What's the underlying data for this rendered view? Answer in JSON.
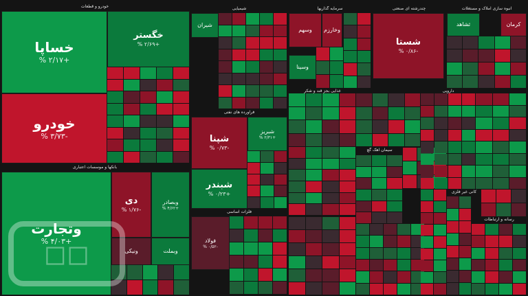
{
  "colors": {
    "up_strong": "#0d9a4a",
    "up": "#0b7a3c",
    "up_soft": "#1f5f38",
    "down_strong": "#c0152c",
    "down": "#8e1428",
    "down_soft": "#5a1c2a",
    "neutral": "#3a2a30"
  },
  "sectors": [
    {
      "id": "auto",
      "title": "خودرو و قطعات"
    },
    {
      "id": "bank",
      "title": "بانکها و موسسات اعتباری"
    },
    {
      "id": "refinery",
      "title": "فراورده های نفتی"
    },
    {
      "id": "metals",
      "title": "فلزات اساسی"
    },
    {
      "id": "chem",
      "title": "شیمیایی"
    },
    {
      "id": "multi",
      "title": "چندرشته ای صنعتی"
    },
    {
      "id": "realestate",
      "title": "انبوه سازی املاک و مستغلات"
    },
    {
      "id": "invest",
      "title": "سرمایه گذاریها"
    },
    {
      "id": "food",
      "title": "غذایی بجز قند و شکر"
    },
    {
      "id": "cement",
      "title": "سیمان آهک گچ"
    },
    {
      "id": "media",
      "title": "رسانه و ارتباطات"
    },
    {
      "id": "mineral",
      "title": "کانی غیر فلزی"
    },
    {
      "id": "dairy",
      "title": "دارویی"
    }
  ],
  "tiles": [
    {
      "id": "khasapa",
      "name": "خساپا",
      "pct": "% ۲/۱۷+",
      "tone": "up_strong",
      "size": "big"
    },
    {
      "id": "khgostar",
      "name": "خگستر",
      "pct": "% ۲/۶۹+",
      "tone": "up",
      "size": "med"
    },
    {
      "id": "khodro",
      "name": "خودرو",
      "pct": "% ۳/۷۳-",
      "tone": "down_strong",
      "size": "big"
    },
    {
      "id": "vtejarat",
      "name": "وتجارت",
      "pct": "% ۴/۰۳+",
      "tone": "up_strong",
      "size": "big"
    },
    {
      "id": "di",
      "name": "دی",
      "pct": "% ۱/۷۶-",
      "tone": "down",
      "size": "med"
    },
    {
      "id": "vbsader",
      "name": "وبصادر",
      "pct": "% ۴/۶۲+",
      "tone": "up",
      "size": "sm"
    },
    {
      "id": "shasta",
      "name": "شستا",
      "pct": "% ۰/۸۶-",
      "tone": "down",
      "size": "med"
    },
    {
      "id": "shepna",
      "name": "شپنا",
      "pct": "% ۰/۷۳-",
      "tone": "down",
      "size": "med"
    },
    {
      "id": "shbandar",
      "name": "شبندر",
      "pct": "% ۰/۲۳+",
      "tone": "up",
      "size": "med"
    },
    {
      "id": "shbriz",
      "name": "شبریز",
      "pct": "% ۲/۳۱+",
      "tone": "up",
      "size": "sm"
    },
    {
      "id": "foolad",
      "name": "فولاد",
      "pct": "% ۰/۵۲-",
      "tone": "down_soft",
      "size": "sm"
    },
    {
      "id": "shiran",
      "name": "شیران",
      "pct": "",
      "tone": "up",
      "size": "sm"
    },
    {
      "id": "vsina",
      "name": "وسینا",
      "pct": "",
      "tone": "up",
      "size": "sm"
    },
    {
      "id": "vsaham",
      "name": "وسهم",
      "pct": "",
      "tone": "down",
      "size": "sm"
    },
    {
      "id": "vkharazm",
      "name": "وخارزم",
      "pct": "",
      "tone": "down",
      "size": "sm"
    },
    {
      "id": "shahed",
      "name": "ثشاهد",
      "pct": "",
      "tone": "up",
      "size": "sm"
    },
    {
      "id": "karman",
      "name": "کرمان",
      "pct": "",
      "tone": "down",
      "size": "sm"
    },
    {
      "id": "vbemelt",
      "name": "وبملت",
      "pct": "",
      "tone": "up",
      "size": "sm"
    },
    {
      "id": "vbank",
      "name": "ونیکی",
      "pct": "",
      "tone": "down",
      "size": "sm"
    }
  ]
}
